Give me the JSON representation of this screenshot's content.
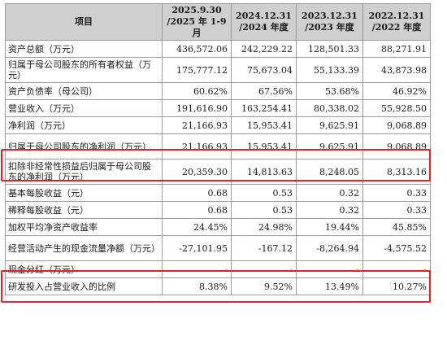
{
  "headers": [
    "项目",
    "2025.9.30\n/2025 年 1-9 月",
    "2024.12.31\n/2024 年度",
    "2023.12.31\n/2023 年度",
    "2022.12.31\n/2022 年度"
  ],
  "rows": [
    {
      "label": "资产总额（万元）",
      "values": [
        "436,572.06",
        "242,229.22",
        "128,501.33",
        "88,271.91"
      ]
    },
    {
      "label": "归属于母公司股东的所有者权益（万元）",
      "values": [
        "175,777.12",
        "75,673.04",
        "55,133.39",
        "43,873.98"
      ]
    },
    {
      "label": "资产负债率（母公司）",
      "values": [
        "60.62%",
        "67.56%",
        "53.68%",
        "46.92%"
      ]
    },
    {
      "label": "营业收入（万元）",
      "values": [
        "191,616.90",
        "163,254.41",
        "80,338.02",
        "55,928.50"
      ]
    },
    {
      "label": "净利润（万元）",
      "values": [
        "21,166.93",
        "15,953.41",
        "9,625.91",
        "9,068.89"
      ]
    },
    {
      "label": "归属于母公司股东的净利润（万元）",
      "values": [
        "21,166.93",
        "15,953.41",
        "9,625.91",
        "9,068.89"
      ]
    },
    {
      "label": "扣除非经常性损益后归属于母公司股东的净利润（万元）",
      "values": [
        "20,359.30",
        "14,813.63",
        "8,248.05",
        "8,313.16"
      ]
    },
    {
      "label": "基本每股收益（元）",
      "values": [
        "0.68",
        "0.53",
        "0.32",
        "0.33"
      ]
    },
    {
      "label": "稀释每股收益（元）",
      "values": [
        "0.68",
        "0.53",
        "0.32",
        "0.33"
      ]
    },
    {
      "label": "加权平均净资产收益率",
      "values": [
        "24.45%",
        "24.98%",
        "19.44%",
        "45.85%"
      ]
    },
    {
      "label": "经营活动产生的现金流量净额（万元）",
      "values": [
        "-27,101.95",
        "-167.12",
        "-8,264.94",
        "-4,575.52"
      ]
    },
    {
      "label": "现金分红（万元）",
      "values": [
        "-",
        "-",
        "-",
        "-"
      ]
    },
    {
      "label": "研发投入占营业收入的比例",
      "values": [
        "8.38%",
        "9.52%",
        "13.49%",
        "10.27%"
      ]
    }
  ],
  "highlight_color": "#e0202a"
}
